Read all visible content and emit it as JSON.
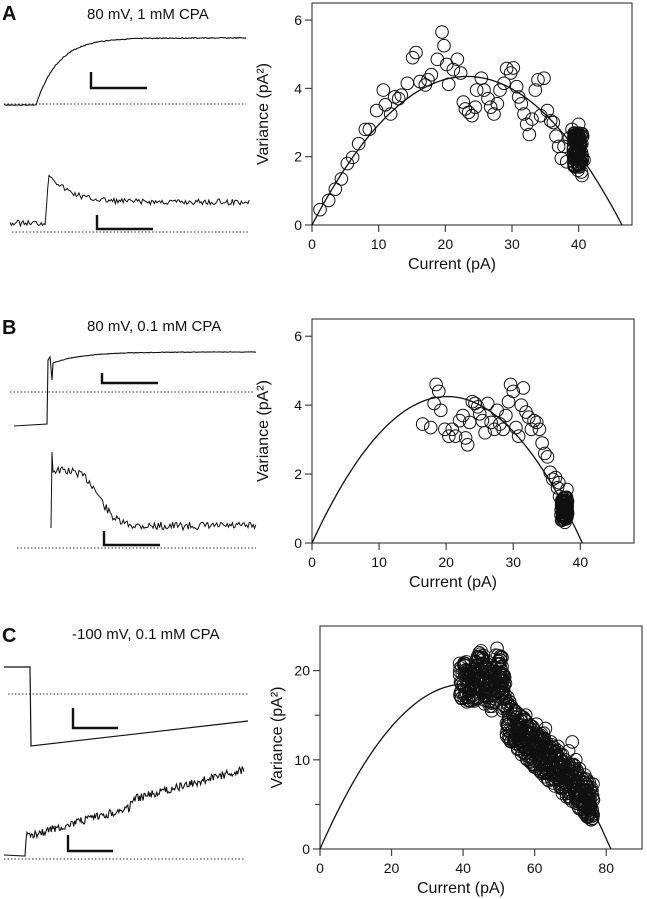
{
  "panels": [
    {
      "letter": "A",
      "condition": "80 mV, 1 mM CPA"
    },
    {
      "letter": "B",
      "condition": "80 mV, 0.1 mM CPA"
    },
    {
      "letter": "C",
      "condition": "-100 mV, 0.1 mM CPA"
    }
  ],
  "chart_data": [
    {
      "type": "scatter",
      "panel": "A",
      "title": "",
      "xlabel": "Current (pA)",
      "ylabel": "Variance (pA²)",
      "xlim": [
        0,
        48
      ],
      "ylim": [
        0,
        6.5
      ],
      "xticks": [
        0,
        10,
        20,
        30,
        40
      ],
      "yticks": [
        0,
        2,
        4,
        6
      ],
      "fit": {
        "type": "parabola",
        "x_zero": 46.5,
        "peak_variance": 4.35
      },
      "points_x": [
        1.2,
        2.5,
        3.5,
        4.4,
        5.3,
        6.1,
        7.0,
        8.0,
        8.6,
        9.7,
        10.7,
        11.0,
        11.8,
        12.4,
        13.0,
        13.4,
        14.3,
        15.1,
        15.6,
        16.2,
        17.0,
        17.4,
        17.9,
        18.8,
        19.5,
        19.8,
        20.2,
        20.5,
        21.2,
        21.8,
        22.3,
        22.7,
        23.0,
        23.5,
        24.0,
        24.5,
        24.7,
        25.4,
        25.8,
        26.4,
        26.8,
        27.3,
        27.8,
        28.2,
        28.8,
        29.2,
        29.8,
        30.2,
        30.7,
        31.0,
        31.4,
        31.8,
        32.2,
        32.6,
        33.0,
        33.5,
        33.9,
        34.3,
        34.8,
        35.3,
        35.8,
        36.2,
        36.6,
        37.0,
        37.4,
        37.8,
        38.2,
        38.6,
        39.0,
        39.2,
        39.4,
        39.6,
        39.8,
        40.0,
        40.2,
        40.4,
        40.6,
        40.8,
        39.5,
        39.9,
        40.3,
        40.1,
        39.7,
        40.5
      ],
      "points_y": [
        0.45,
        0.72,
        1.05,
        1.35,
        1.8,
        1.98,
        2.38,
        2.8,
        2.8,
        3.35,
        3.95,
        3.52,
        3.25,
        3.75,
        3.7,
        3.8,
        4.15,
        4.9,
        5.05,
        4.2,
        4.1,
        4.25,
        4.4,
        4.85,
        5.65,
        5.25,
        4.7,
        4.12,
        4.55,
        4.85,
        4.45,
        3.6,
        3.4,
        3.3,
        3.2,
        3.45,
        3.95,
        4.3,
        3.95,
        3.7,
        3.45,
        3.25,
        3.55,
        3.95,
        4.15,
        4.58,
        4.45,
        4.6,
        4.05,
        3.75,
        3.55,
        3.25,
        2.95,
        2.65,
        3.1,
        3.95,
        4.25,
        3.2,
        4.3,
        3.35,
        3.05,
        3.0,
        2.6,
        2.3,
        1.95,
        2.3,
        1.85,
        2.55,
        2.8,
        2.2,
        1.75,
        2.4,
        1.9,
        2.95,
        2.1,
        1.55,
        2.6,
        1.9,
        2.5,
        1.6,
        2.35,
        1.7,
        2.05,
        1.45
      ]
    },
    {
      "type": "scatter",
      "panel": "B",
      "title": "",
      "xlabel": "Current (pA)",
      "ylabel": "Variance (pA²)",
      "xlim": [
        0,
        48
      ],
      "ylim": [
        0,
        6.5
      ],
      "xticks": [
        0,
        10,
        20,
        30,
        40
      ],
      "yticks": [
        0,
        2,
        4,
        6
      ],
      "fit": {
        "type": "parabola",
        "x_zero": 40.3,
        "peak_variance": 4.25
      },
      "points_x": [
        16.5,
        17.7,
        18.2,
        18.5,
        18.9,
        19.2,
        19.8,
        20.4,
        20.9,
        21.4,
        22.0,
        22.5,
        22.9,
        23.2,
        23.5,
        23.9,
        24.3,
        24.7,
        25.0,
        25.4,
        25.8,
        26.2,
        26.7,
        27.2,
        27.6,
        28.0,
        28.5,
        28.9,
        29.3,
        29.6,
        30.0,
        30.4,
        30.8,
        31.2,
        31.5,
        31.9,
        32.3,
        32.7,
        33.1,
        33.5,
        33.9,
        34.3,
        34.7,
        35.1,
        35.5,
        35.9,
        36.3,
        36.6,
        36.9,
        37.2,
        37.4,
        37.6,
        37.8,
        38.0,
        37.3,
        37.7,
        37.5,
        37.9,
        38.1,
        36.8
      ],
      "points_y": [
        3.45,
        3.35,
        4.05,
        4.6,
        4.4,
        3.85,
        3.3,
        3.1,
        3.3,
        3.1,
        3.55,
        3.7,
        3.05,
        2.85,
        3.5,
        4.1,
        4.05,
        3.95,
        3.75,
        3.55,
        3.2,
        4.05,
        3.5,
        3.3,
        3.85,
        3.45,
        3.3,
        3.7,
        4.1,
        4.6,
        4.4,
        3.35,
        3.1,
        4.0,
        4.5,
        3.8,
        3.65,
        3.3,
        3.55,
        3.5,
        3.3,
        2.9,
        2.6,
        2.5,
        2.05,
        1.85,
        1.9,
        1.6,
        1.35,
        1.2,
        1.05,
        0.95,
        0.8,
        1.55,
        0.7,
        0.6,
        1.3,
        1.1,
        0.85,
        1.75
      ]
    },
    {
      "type": "scatter",
      "panel": "C",
      "title": "",
      "xlabel": "Current (pA)",
      "ylabel": "Variance (pA²)",
      "xlim": [
        0,
        90
      ],
      "ylim": [
        0,
        25
      ],
      "xticks": [
        0,
        20,
        40,
        60,
        80
      ],
      "yticks": [
        0,
        10,
        20
      ],
      "yminor": [
        5,
        15
      ],
      "fit": {
        "type": "parabola",
        "x_zero": 81.3,
        "peak_variance": 18.5
      },
      "points_x": [
        39.5,
        40.5,
        41.5,
        42.5,
        43.5,
        44.5,
        45.0,
        45.5,
        46.5,
        47.5,
        48.5,
        49.5,
        50.0,
        50.5,
        51.5,
        52.5,
        53.5,
        54.5,
        55.5,
        56.5,
        57.5,
        58.5,
        59.5,
        60.5,
        61.5,
        62.5,
        63.5,
        64.5,
        65.5,
        66.5,
        67.5,
        68.5,
        69.5,
        70.5,
        71.5,
        72.5,
        73.5,
        74.5,
        75.5,
        76.0,
        41.0,
        43.0,
        46.0,
        48.0,
        51.0,
        53.0,
        56.0,
        58.0,
        61.0,
        63.0,
        66.0,
        68.0,
        71.0,
        73.0,
        75.0
      ],
      "points_y": [
        18.5,
        20.0,
        17.0,
        19.5,
        21.0,
        22.0,
        20.5,
        19.0,
        18.0,
        16.0,
        17.5,
        22.5,
        21.0,
        19.0,
        18.5,
        17.0,
        16.0,
        15.5,
        14.0,
        13.5,
        15.0,
        13.0,
        12.0,
        14.0,
        12.5,
        13.0,
        11.5,
        12.0,
        10.5,
        11.5,
        9.5,
        10.0,
        11.0,
        12.0,
        10.0,
        9.0,
        7.5,
        6.5,
        5.5,
        4.5,
        16.5,
        17.0,
        18.0,
        15.5,
        15.5,
        16.5,
        11.5,
        10.0,
        10.5,
        13.5,
        9.0,
        7.5,
        9.0,
        6.0,
        4.0
      ]
    }
  ],
  "traces": [
    {
      "panel": "A",
      "row": "current",
      "baseline": "dotted"
    },
    {
      "panel": "A",
      "row": "variance",
      "baseline": "dotted"
    },
    {
      "panel": "B",
      "row": "current",
      "baseline": "dotted"
    },
    {
      "panel": "B",
      "row": "variance",
      "baseline": "dotted"
    },
    {
      "panel": "C",
      "row": "current",
      "baseline": "dotted"
    },
    {
      "panel": "C",
      "row": "variance",
      "baseline": "dotted"
    }
  ]
}
